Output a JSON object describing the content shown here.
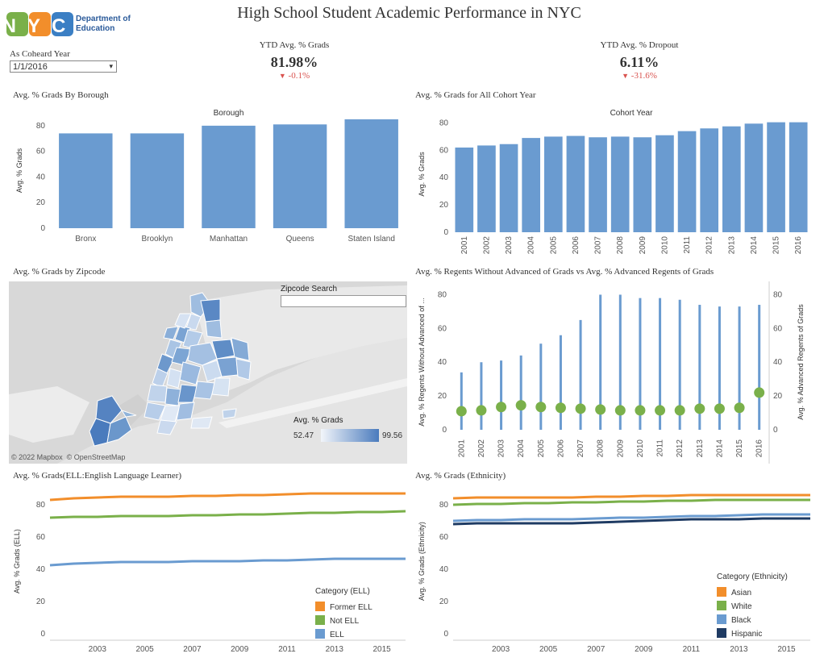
{
  "header": {
    "title": "High School Student Academic Performance in NYC",
    "logo_text": "NYC",
    "logo_sub1": "Department of",
    "logo_sub2": "Education"
  },
  "filter": {
    "label": "As Coheard Year",
    "value": "1/1/2016",
    "caret": "▾"
  },
  "kpis": {
    "grads": {
      "label": "YTD Avg. % Grads",
      "value": "81.98%",
      "delta": "-0.1%",
      "arrow": "▼"
    },
    "dropout": {
      "label": "YTD Avg. % Dropout",
      "value": "6.11%",
      "delta": "-31.6%",
      "arrow": "▼"
    }
  },
  "colors": {
    "bar": "#6a9bd0",
    "green": "#7ab04a",
    "orange": "#f28e2b",
    "dark_blue": "#1f3b63",
    "negative": "#d9534f"
  },
  "map": {
    "title": "Avg. % Grads by Zipcode",
    "search_label": "Zipcode Search",
    "search_placeholder": "",
    "legend_title": "Avg. % Grads",
    "legend_min": "52.47",
    "legend_max": "99.56",
    "attribution": "© 2022 Mapbox  © OpenStreetMap"
  },
  "chart_data": [
    {
      "id": "borough",
      "type": "bar",
      "title": "Avg. % Grads By Borough",
      "header": "Borough",
      "ylabel": "Avg. % Grads",
      "categories": [
        "Bronx",
        "Brooklyn",
        "Manhattan",
        "Queens",
        "Staten Island"
      ],
      "values": [
        74,
        74,
        80,
        81,
        85
      ],
      "ylim": [
        0,
        90
      ],
      "yticks": [
        0,
        20,
        40,
        60,
        80
      ]
    },
    {
      "id": "cohort",
      "type": "bar",
      "title": "Avg. % Grads for All Cohort Year",
      "header": "Cohort Year",
      "ylabel": "Avg. % Grads",
      "categories": [
        "2001",
        "2002",
        "2003",
        "2004",
        "2005",
        "2006",
        "2007",
        "2008",
        "2009",
        "2010",
        "2011",
        "2012",
        "2013",
        "2014",
        "2015",
        "2016"
      ],
      "values": [
        62,
        63.5,
        64.5,
        69,
        70,
        70.5,
        69.5,
        70,
        69.5,
        71,
        74,
        76,
        77.5,
        79.5,
        80.5,
        80.5
      ],
      "ylim": [
        0,
        85
      ],
      "yticks": [
        0,
        20,
        40,
        60,
        80
      ]
    },
    {
      "id": "regents",
      "type": "bar",
      "title": "Avg. % Regents Without Advanced of Grads vs Avg. % Advanced Regents of Grads",
      "ylabel_left": "Avg. % Regents Without Advanced of ...",
      "ylabel_right": "Avg. % Advanced Regents of Grads",
      "categories": [
        "2001",
        "2002",
        "2003",
        "2004",
        "2005",
        "2006",
        "2007",
        "2008",
        "2009",
        "2010",
        "2011",
        "2012",
        "2013",
        "2014",
        "2015",
        "2016"
      ],
      "series": [
        {
          "values": [
            34,
            40,
            41,
            44,
            51,
            56,
            65,
            80,
            80,
            78,
            78,
            77,
            74,
            73,
            73,
            74
          ]
        },
        {
          "values": [
            11,
            11.5,
            13.5,
            14.5,
            13.5,
            13,
            12.5,
            12,
            11.5,
            11.5,
            11.5,
            11.5,
            12.5,
            12.5,
            13,
            22
          ]
        }
      ],
      "ylim": [
        0,
        85
      ],
      "yticks": [
        0,
        20,
        40,
        60,
        80
      ]
    },
    {
      "id": "ell",
      "type": "line",
      "title": "Avg. % Grads(ELL:English Language Learner)",
      "ylabel": "Avg. % Grads (ELL)",
      "x": [
        2001,
        2002,
        2003,
        2004,
        2005,
        2006,
        2007,
        2008,
        2009,
        2010,
        2011,
        2012,
        2013,
        2014,
        2015,
        2016
      ],
      "xticks": [
        2003,
        2005,
        2007,
        2009,
        2011,
        2013,
        2015
      ],
      "ylim": [
        0,
        90
      ],
      "yticks": [
        0,
        20,
        40,
        60,
        80
      ],
      "legend_title": "Category (ELL)",
      "series": [
        {
          "name": "Former ELL",
          "color": "#f28e2b",
          "values": [
            83,
            84,
            84.5,
            85,
            85,
            85,
            85.5,
            85.5,
            86,
            86,
            86.5,
            87,
            87,
            87,
            87,
            87
          ]
        },
        {
          "name": "Not ELL",
          "color": "#7ab04a",
          "values": [
            72,
            72.5,
            72.5,
            73,
            73,
            73,
            73.5,
            73.5,
            74,
            74,
            74.5,
            75,
            75,
            75.5,
            75.5,
            76
          ]
        },
        {
          "name": "ELL",
          "color": "#6a9bd0",
          "values": [
            42.5,
            43.5,
            44,
            44.5,
            44.5,
            44.5,
            45,
            45,
            45,
            45.5,
            45.5,
            46,
            46.5,
            46.5,
            46.5,
            46.5
          ]
        }
      ]
    },
    {
      "id": "ethnicity",
      "type": "line",
      "title": "Avg. % Grads (Ethnicity)",
      "ylabel": "Avg. % Grads (Ethnicity)",
      "x": [
        2001,
        2002,
        2003,
        2004,
        2005,
        2006,
        2007,
        2008,
        2009,
        2010,
        2011,
        2012,
        2013,
        2014,
        2015,
        2016
      ],
      "xticks": [
        2003,
        2005,
        2007,
        2009,
        2011,
        2013,
        2015
      ],
      "ylim": [
        0,
        90
      ],
      "yticks": [
        0,
        20,
        40,
        60,
        80
      ],
      "legend_title": "Category (Ethnicity)",
      "series": [
        {
          "name": "Asian",
          "color": "#f28e2b",
          "values": [
            84,
            84.5,
            84.5,
            84.5,
            84.5,
            84.5,
            85,
            85,
            85.5,
            85.5,
            86,
            86,
            86,
            86,
            86,
            86
          ]
        },
        {
          "name": "White",
          "color": "#7ab04a",
          "values": [
            80,
            80.5,
            80.5,
            81,
            81,
            81.5,
            81.5,
            82,
            82,
            82.5,
            82.5,
            83,
            83,
            83,
            83,
            83
          ]
        },
        {
          "name": "Black",
          "color": "#6a9bd0",
          "values": [
            70,
            70.5,
            70.5,
            71,
            71,
            71,
            71.5,
            72,
            72,
            72.5,
            73,
            73,
            73.5,
            74,
            74,
            74
          ]
        },
        {
          "name": "Hispanic",
          "color": "#1f3b63",
          "values": [
            68,
            68.5,
            68.5,
            68.5,
            68.5,
            68.5,
            69,
            69.5,
            70,
            70.5,
            71,
            71,
            71,
            71.5,
            71.5,
            71.5
          ]
        }
      ]
    }
  ]
}
